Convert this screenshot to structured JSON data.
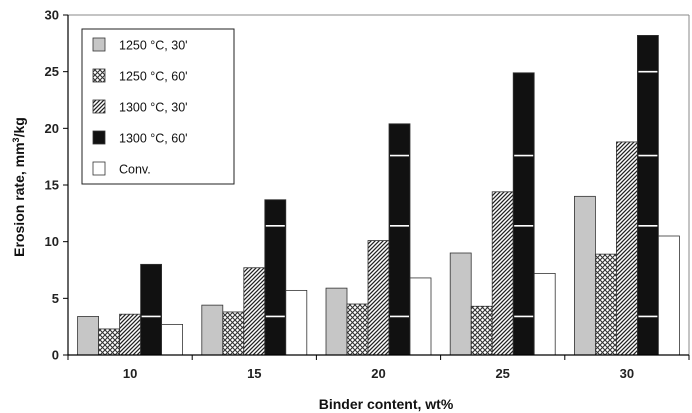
{
  "chart_data": {
    "type": "bar",
    "xlabel": "Binder content, wt%",
    "ylabel_main": "Erosion rate, mm",
    "ylabel_sup": "3",
    "ylabel_tail": "/kg",
    "ylim": [
      0,
      30
    ],
    "yticks": [
      0,
      5,
      10,
      15,
      20,
      25,
      30
    ],
    "categories": [
      "10",
      "15",
      "20",
      "25",
      "30"
    ],
    "legend_position": "top-left",
    "grid": false,
    "series": [
      {
        "name": "1250 °C, 30'",
        "pattern": "solid-gray",
        "values": [
          3.4,
          4.4,
          5.9,
          9.0,
          14.0
        ]
      },
      {
        "name": "1250 °C, 60'",
        "pattern": "crosshatch",
        "values": [
          2.3,
          3.8,
          4.5,
          4.3,
          8.9
        ]
      },
      {
        "name": "1300 °C, 30'",
        "pattern": "diagonal",
        "values": [
          3.6,
          7.7,
          10.1,
          14.4,
          18.8
        ]
      },
      {
        "name": "1300 °C, 60'",
        "pattern": "solid-black",
        "values": [
          8.0,
          13.7,
          20.4,
          24.9,
          28.2
        ]
      },
      {
        "name": "Conv.",
        "pattern": "white",
        "values": [
          2.7,
          5.7,
          6.8,
          7.2,
          10.5
        ]
      }
    ]
  }
}
